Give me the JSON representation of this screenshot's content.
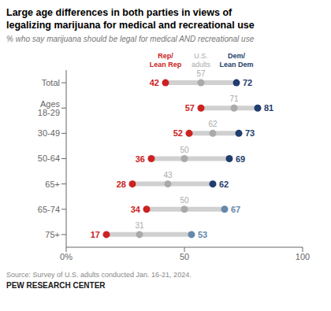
{
  "chart_data": {
    "type": "dumbbell",
    "title": "Large age differences in both parties in views of\nlegalizing marijuana for medical and recreational use",
    "subtitle": "% who say marijuana should be legal for medical AND recreational use",
    "annotations": [
      "Source: Survey of U.S. adults conducted Jan. 16-21, 2024.",
      "PEW RESEARCH CENTER"
    ],
    "categories": [
      "Total",
      "Ages 18-29",
      "30-49",
      "50-64",
      "65+",
      "65-74",
      "75+"
    ],
    "series": [
      {
        "name": "Rep/\nLean Rep",
        "color": "#cc2222",
        "values": [
          42,
          57,
          52,
          36,
          28,
          34,
          17
        ]
      },
      {
        "name": "U.S.\nadults",
        "color": "#aaaaaa",
        "values": [
          57,
          71,
          62,
          50,
          43,
          50,
          31
        ]
      },
      {
        "name": "Dem/\nLean Dem",
        "color": "#1f3d6e",
        "colors": [
          "#1f3d6e",
          "#1f3d6e",
          "#1f3d6e",
          "#1f3d6e",
          "#1f3d6e",
          "#6688aa",
          "#6688aa"
        ],
        "values": [
          72,
          81,
          73,
          69,
          62,
          67,
          53
        ]
      }
    ],
    "xlim": [
      0,
      100
    ],
    "xticks": [
      {
        "value": 0,
        "label": "0%"
      },
      50,
      100
    ],
    "grid": false,
    "data_labels": true
  }
}
